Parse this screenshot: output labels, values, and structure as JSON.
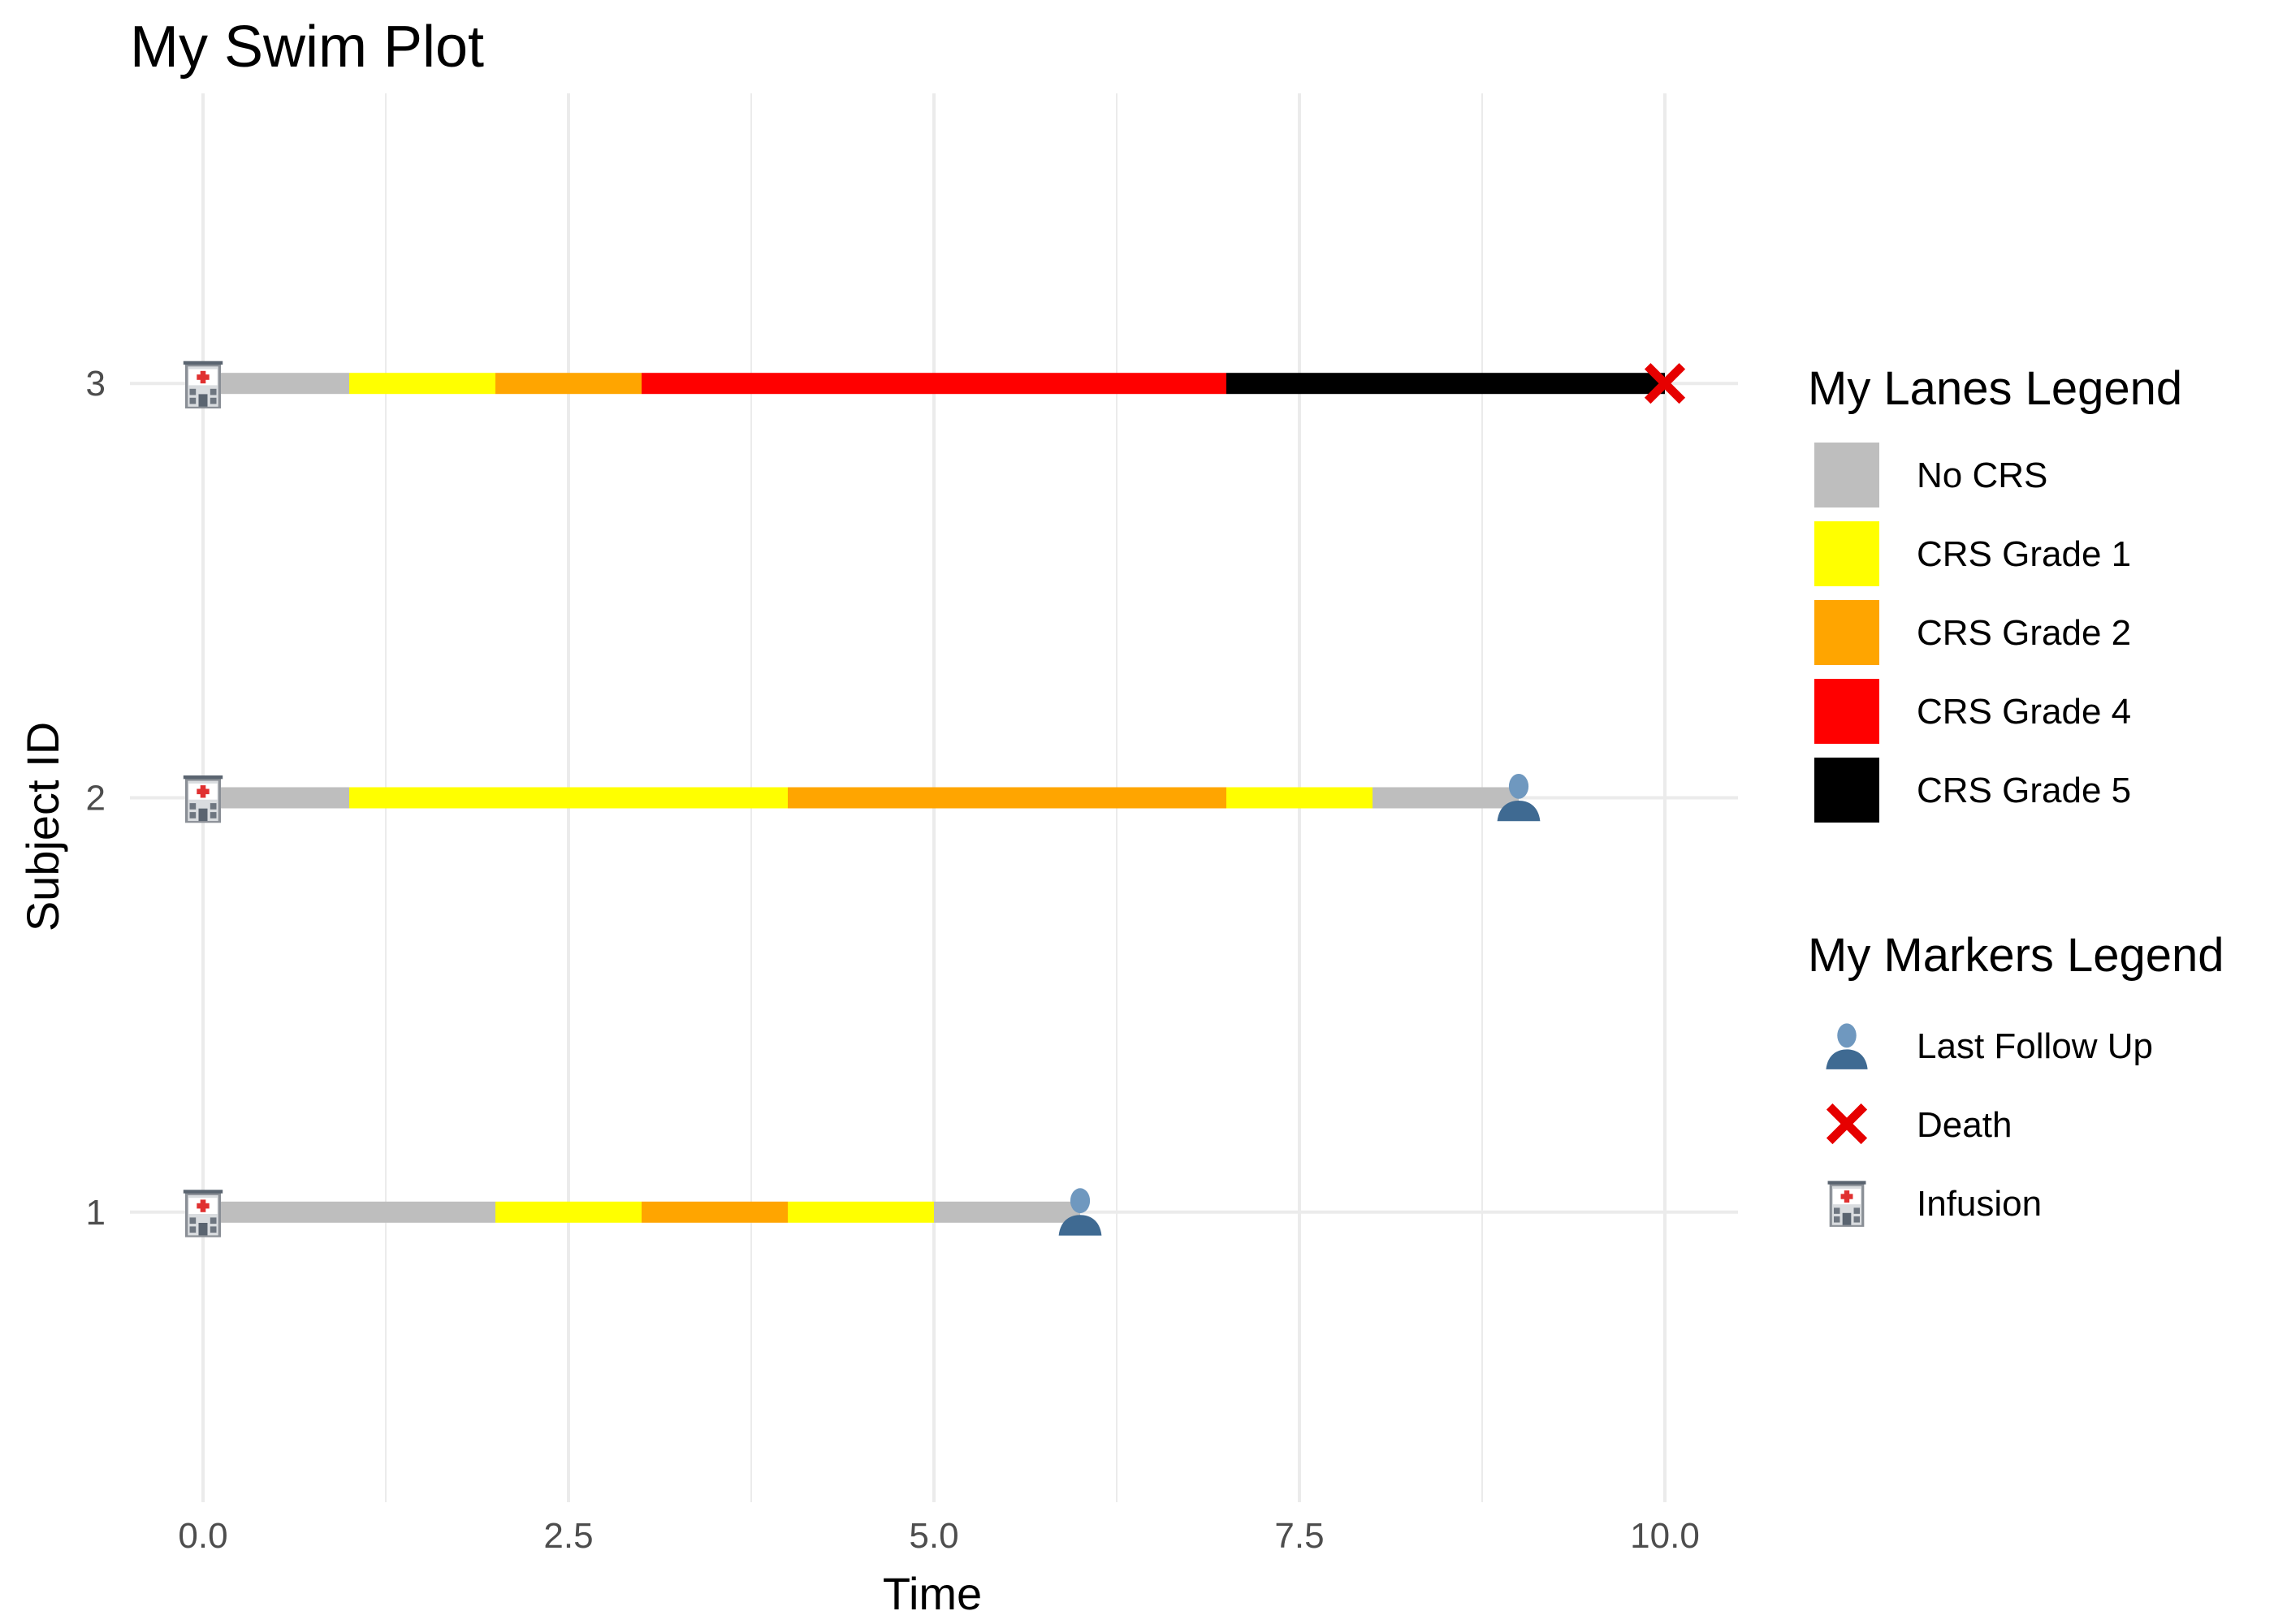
{
  "chart_data": {
    "type": "swimmer",
    "title": "My Swim Plot",
    "xlabel": "Time",
    "ylabel": "Subject ID",
    "xlim": [
      -0.5,
      10.5
    ],
    "ylim": [
      0.3,
      3.7
    ],
    "x_ticks": [
      "0.0",
      "2.5",
      "5.0",
      "7.5",
      "10.0"
    ],
    "x_tick_values": [
      0,
      2.5,
      5,
      7.5,
      10
    ],
    "y_categories": [
      "1",
      "2",
      "3"
    ],
    "grid": true,
    "lane_colors": {
      "No CRS": "#bebebe",
      "CRS Grade 1": "#ffff00",
      "CRS Grade 2": "#ffa500",
      "CRS Grade 4": "#ff0000",
      "CRS Grade 5": "#000000"
    },
    "lanes": [
      {
        "subject": "1",
        "segments": [
          {
            "start": 0,
            "end": 2,
            "status": "No CRS"
          },
          {
            "start": 2,
            "end": 3,
            "status": "CRS Grade 1"
          },
          {
            "start": 3,
            "end": 4,
            "status": "CRS Grade 2"
          },
          {
            "start": 4,
            "end": 5,
            "status": "CRS Grade 1"
          },
          {
            "start": 5,
            "end": 6,
            "status": "No CRS"
          }
        ]
      },
      {
        "subject": "2",
        "segments": [
          {
            "start": 0,
            "end": 1,
            "status": "No CRS"
          },
          {
            "start": 1,
            "end": 4,
            "status": "CRS Grade 1"
          },
          {
            "start": 4,
            "end": 7,
            "status": "CRS Grade 2"
          },
          {
            "start": 7,
            "end": 8,
            "status": "CRS Grade 1"
          },
          {
            "start": 8,
            "end": 9,
            "status": "No CRS"
          }
        ]
      },
      {
        "subject": "3",
        "segments": [
          {
            "start": 0,
            "end": 1,
            "status": "No CRS"
          },
          {
            "start": 1,
            "end": 2,
            "status": "CRS Grade 1"
          },
          {
            "start": 2,
            "end": 3,
            "status": "CRS Grade 2"
          },
          {
            "start": 3,
            "end": 7,
            "status": "CRS Grade 4"
          },
          {
            "start": 7,
            "end": 10,
            "status": "CRS Grade 5"
          }
        ]
      }
    ],
    "markers": [
      {
        "subject": "1",
        "time": 0,
        "type": "Infusion",
        "icon": "hospital-icon"
      },
      {
        "subject": "1",
        "time": 6,
        "type": "Last Follow Up",
        "icon": "person-icon"
      },
      {
        "subject": "2",
        "time": 0,
        "type": "Infusion",
        "icon": "hospital-icon"
      },
      {
        "subject": "2",
        "time": 9,
        "type": "Last Follow Up",
        "icon": "person-icon"
      },
      {
        "subject": "3",
        "time": 0,
        "type": "Infusion",
        "icon": "hospital-icon"
      },
      {
        "subject": "3",
        "time": 10,
        "type": "Death",
        "icon": "cross-icon"
      }
    ],
    "legends": {
      "lanes": {
        "title": "My Lanes Legend",
        "items": [
          "No CRS",
          "CRS Grade 1",
          "CRS Grade 2",
          "CRS Grade 4",
          "CRS Grade 5"
        ]
      },
      "markers": {
        "title": "My Markers Legend",
        "items": [
          {
            "label": "Last Follow Up",
            "icon": "person-icon"
          },
          {
            "label": "Death",
            "icon": "cross-icon"
          },
          {
            "label": "Infusion",
            "icon": "hospital-icon"
          }
        ]
      },
      "placement": "right"
    },
    "colors": {
      "grid": "#ebebeb",
      "tick_text": "#4d4d4d",
      "death_marker": "#e60000",
      "person_marker": "#4e7aa3",
      "hospital_cross": "#e03030"
    }
  }
}
